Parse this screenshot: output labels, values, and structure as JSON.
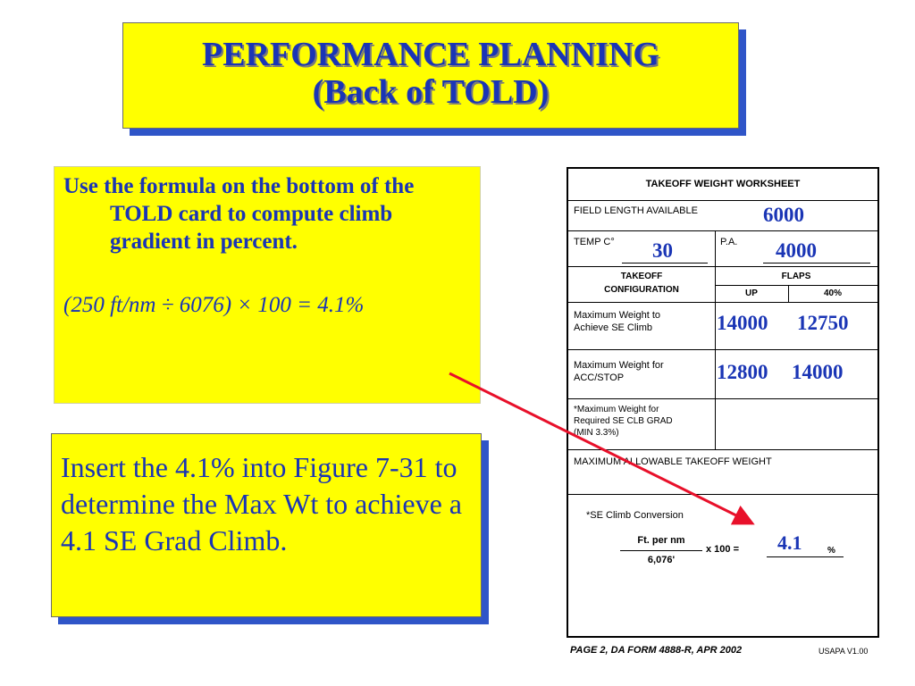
{
  "title": {
    "line1": "PERFORMANCE PLANNING",
    "line2": "(Back of TOLD)"
  },
  "instruction": {
    "text": "Use the formula on the bottom of the TOLD card to compute climb gradient in percent.",
    "formula": "(250 ft/nm ÷ 6076) × 100 = 4.1%"
  },
  "insert_note": "Insert the 4.1% into Figure 7-31 to determine the Max Wt to achieve a 4.1 SE Grad Climb.",
  "worksheet": {
    "header": "TAKEOFF WEIGHT WORKSHEET",
    "field_length_label": "FIELD LENGTH AVAILABLE",
    "field_length_value": "6000",
    "temp_label": "TEMP C°",
    "temp_value": "30",
    "pa_label": "P.A.",
    "pa_value": "4000",
    "config_label_1": "TAKEOFF",
    "config_label_2": "CONFIGURATION",
    "flaps_label": "FLAPS",
    "flaps_up": "UP",
    "flaps_40": "40%",
    "row_se_climb_label_1": "Maximum Weight to",
    "row_se_climb_label_2": "Achieve SE Climb",
    "row_se_climb_up": "14000",
    "row_se_climb_40": "12750",
    "row_acc_label_1": "Maximum Weight for",
    "row_acc_label_2": "ACC/STOP",
    "row_acc_up": "12800",
    "row_acc_40": "14000",
    "row_grad_label_1": "*Maximum Weight for",
    "row_grad_label_2": "Required SE CLB GRAD",
    "row_grad_label_3": "(MIN 3.3%)",
    "max_allowable_label": "MAXIMUM ALLOWABLE TAKEOFF WEIGHT",
    "conversion_label": "*SE Climb Conversion",
    "numerator": "Ft. per nm",
    "denominator": "6,076'",
    "times_100": "x 100 =",
    "result_value": "4.1",
    "percent": "%"
  },
  "footer": {
    "left": "PAGE 2, DA FORM 4888-R, APR 2002",
    "right": "USAPA V1.00"
  },
  "colors": {
    "yellow": "#ffff00",
    "blue_text": "#1a35b5",
    "shadow": "#2f55c8",
    "arrow": "#e8102a"
  }
}
